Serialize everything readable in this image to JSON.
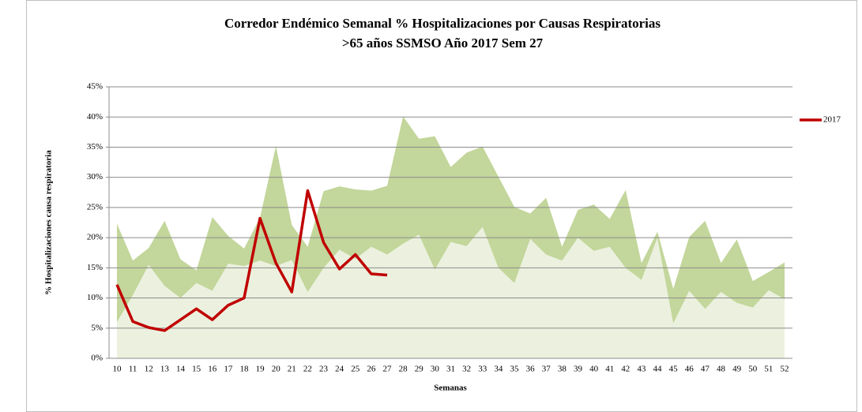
{
  "chart_data": {
    "type": "corridor",
    "title": [
      "Corredor Endémico Semanal % Hospitalizaciones por Causas Respiratorias",
      ">65 años SSMSO Año 2017 Sem 27"
    ],
    "x_label": "Semanas",
    "y_label": "% Hospitalizaciones causa respiratoria",
    "categories": [
      "10",
      "11",
      "12",
      "13",
      "14",
      "15",
      "16",
      "17",
      "18",
      "19",
      "20",
      "21",
      "22",
      "23",
      "24",
      "25",
      "26",
      "27",
      "28",
      "29",
      "30",
      "31",
      "32",
      "33",
      "34",
      "35",
      "36",
      "37",
      "38",
      "39",
      "40",
      "41",
      "42",
      "43",
      "44",
      "45",
      "46",
      "47",
      "48",
      "49",
      "50",
      "51",
      "52"
    ],
    "series": [
      {
        "color": "#c3d69b",
        "kind": "area",
        "values": [
          22.3,
          16.2,
          18.3,
          22.8,
          16.4,
          14.6,
          23.4,
          20.3,
          18.2,
          23.3,
          35.2,
          22.1,
          18.5,
          27.7,
          28.5,
          28,
          27.8,
          28.6,
          40.1,
          36.4,
          36.8,
          31.7,
          34.1,
          35.1,
          30.1,
          25.1,
          24,
          26.6,
          18.5,
          24.6,
          25.5,
          23.1,
          27.9,
          15.8,
          21,
          11.5,
          20.1,
          22.8,
          15.8,
          19.7,
          12.8,
          14.3,
          15.9
        ]
      },
      {
        "color": "#ebf1de",
        "kind": "area",
        "values": [
          6,
          10.5,
          15.5,
          12,
          10,
          12.5,
          11.2,
          15.7,
          15.3,
          16.2,
          15.3,
          16.3,
          11,
          15,
          18,
          16.5,
          18.5,
          17.2,
          19,
          20.5,
          14.7,
          19.3,
          18.6,
          21.8,
          15,
          12.5,
          19.8,
          17.2,
          16.2,
          20,
          17.8,
          18.5,
          15,
          13,
          20,
          5.8,
          11.2,
          8.2,
          11,
          9.2,
          8.4,
          11.3,
          9.8
        ]
      },
      {
        "name": "2017",
        "color": "#c00000",
        "kind": "line",
        "values": [
          12.2,
          6.1,
          5.1,
          4.6,
          6.4,
          8.2,
          6.4,
          8.8,
          10,
          23.2,
          15.8,
          11,
          27.8,
          19.2,
          14.8,
          17.2,
          14,
          13.8,
          null,
          null,
          null,
          null,
          null,
          null,
          null,
          null,
          null,
          null,
          null,
          null,
          null,
          null,
          null,
          null,
          null,
          null,
          null,
          null,
          null,
          null,
          null,
          null,
          null
        ]
      }
    ],
    "ylim": [
      0,
      45
    ],
    "yticks": [
      {
        "value": 0,
        "label": "0%"
      },
      {
        "value": 5,
        "label": "5%"
      },
      {
        "value": 10,
        "label": "10%"
      },
      {
        "value": 15,
        "label": "15%"
      },
      {
        "value": 20,
        "label": "20%"
      },
      {
        "value": 25,
        "label": "25%"
      },
      {
        "value": 30,
        "label": "30%"
      },
      {
        "value": 35,
        "label": "35%"
      },
      {
        "value": 40,
        "label": "40%"
      },
      {
        "value": 45,
        "label": "45%"
      }
    ],
    "grid": true,
    "legend": "right"
  }
}
